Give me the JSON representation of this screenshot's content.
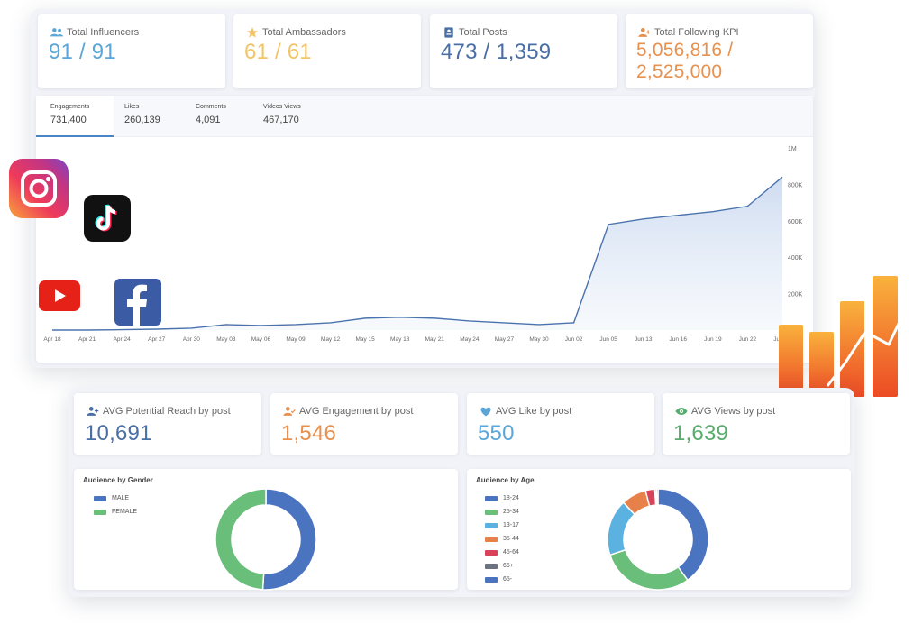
{
  "kpis_top": [
    {
      "label": "Total Influencers",
      "value": "91 / 91",
      "color": "#5ba6d8",
      "icon": "users-icon"
    },
    {
      "label": "Total Ambassadors",
      "value": "61 / 61",
      "color": "#f2c56a",
      "icon": "star-icon"
    },
    {
      "label": "Total Posts",
      "value": "473 / 1,359",
      "color": "#4a6fa5",
      "icon": "id-card-icon"
    },
    {
      "label": "Total Following KPI",
      "value": "5,056,816 / 2,525,000",
      "color": "#e8904e",
      "icon": "user-plus-icon"
    }
  ],
  "tabs": [
    {
      "label": "Engagements",
      "value": "731,400"
    },
    {
      "label": "Likes",
      "value": "260,139"
    },
    {
      "label": "Comments",
      "value": "4,091"
    },
    {
      "label": "Videos Views",
      "value": "467,170"
    }
  ],
  "chart_data": {
    "type": "area",
    "x": [
      "Apr 18",
      "Apr 21",
      "Apr 24",
      "Apr 27",
      "Apr 30",
      "May 03",
      "May 06",
      "May 09",
      "May 12",
      "May 15",
      "May 18",
      "May 21",
      "May 24",
      "May 27",
      "May 30",
      "Jun 02",
      "Jun 05",
      "Jun 13",
      "Jun 16",
      "Jun 19",
      "Jun 22",
      "Jun 25"
    ],
    "values": [
      0,
      0,
      2000,
      5000,
      10000,
      30000,
      25000,
      30000,
      40000,
      65000,
      70000,
      65000,
      50000,
      40000,
      30000,
      40000,
      580000,
      610000,
      630000,
      650000,
      680000,
      840000
    ],
    "y_ticks": [
      "200K",
      "400K",
      "600K",
      "800K",
      "1M"
    ],
    "ylim": [
      0,
      1000000
    ],
    "line_color": "#4a73ad"
  },
  "kpis_bottom": [
    {
      "label": "AVG Potential Reach by post",
      "value": "10,691",
      "color": "#4a6fa5",
      "icon": "user-plus-icon"
    },
    {
      "label": "AVG Engagement by post",
      "value": "1,546",
      "color": "#e8904e",
      "icon": "user-check-icon"
    },
    {
      "label": "AVG Like by post",
      "value": "550",
      "color": "#5ba6d8",
      "icon": "heart-icon"
    },
    {
      "label": "AVG Views by post",
      "value": "1,639",
      "color": "#58ad6e",
      "icon": "eye-icon"
    }
  ],
  "gender": {
    "title": "Audience by Gender",
    "legend": [
      {
        "label": "MALE",
        "color": "#4a73c0",
        "value": 51
      },
      {
        "label": "FEMALE",
        "color": "#69be7a",
        "value": 49
      }
    ]
  },
  "age": {
    "title": "Audience by Age",
    "legend": [
      {
        "label": "18-24",
        "color": "#4a73c0",
        "value": 40
      },
      {
        "label": "25-34",
        "color": "#69be7a",
        "value": 30
      },
      {
        "label": "13-17",
        "color": "#5bb2e0",
        "value": 18
      },
      {
        "label": "35-44",
        "color": "#e8804a",
        "value": 8
      },
      {
        "label": "45-64",
        "color": "#d9435a",
        "value": 3
      },
      {
        "label": "65+",
        "color": "#6c7280",
        "value": 0.5
      },
      {
        "label": "65-",
        "color": "#4a73c0",
        "value": 0.5
      }
    ]
  },
  "social_icons": [
    "instagram-icon",
    "tiktok-icon",
    "youtube-icon",
    "facebook-icon"
  ]
}
